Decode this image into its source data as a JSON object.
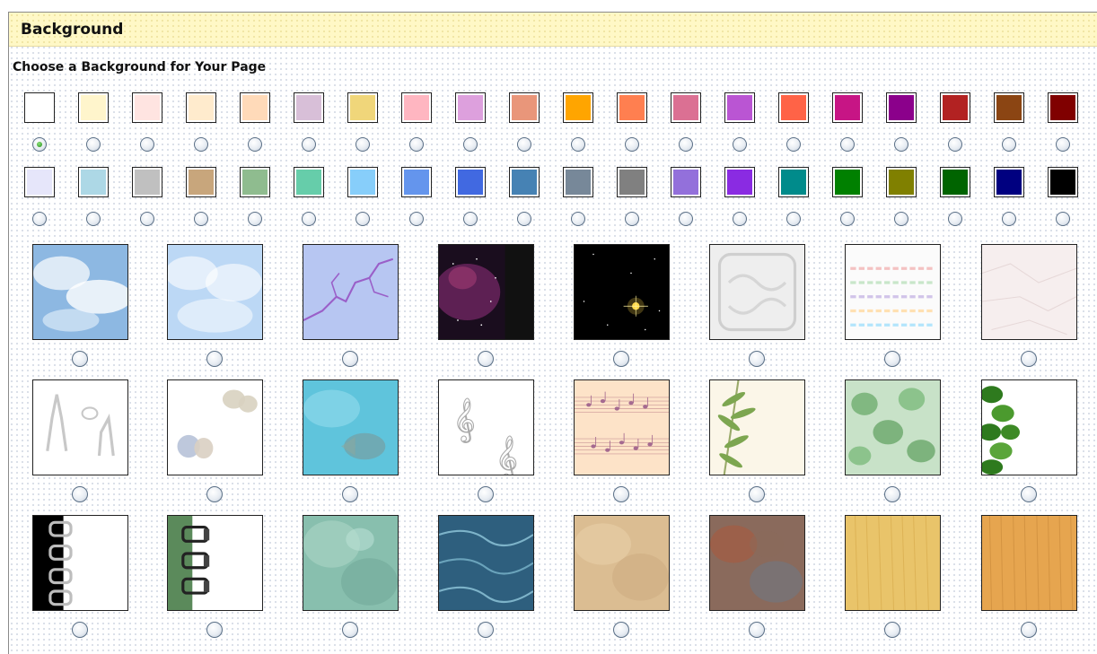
{
  "header": {
    "title": "Background"
  },
  "subtitle": "Choose a Background for Your Page",
  "color_rows": [
    [
      "#ffffff",
      "#fff5cc",
      "#ffe4e1",
      "#ffebcd",
      "#ffdab9",
      "#d8bfd8",
      "#f0d67a",
      "#ffb6c1",
      "#dda0dd",
      "#e9967a",
      "#ffa500",
      "#ff7f50",
      "#db7093",
      "#ba55d3",
      "#ff6347",
      "#c71585",
      "#8b008b",
      "#b22222",
      "#8b4513",
      "#800000"
    ],
    [
      "#e6e6fa",
      "#add8e6",
      "#c0c0c0",
      "#c8a67c",
      "#8fbc8f",
      "#66cdaa",
      "#87cefa",
      "#6495ed",
      "#4169e1",
      "#4682b4",
      "#778899",
      "#808080",
      "#9370db",
      "#8a2be2",
      "#008b8b",
      "#008000",
      "#808000",
      "#006400",
      "#000080",
      "#000000"
    ]
  ],
  "selected_color_index": 0,
  "texture_rows": [
    [
      "sky-clouds-blue",
      "sky-clouds-light",
      "purple-lightning",
      "purple-nebula",
      "starfield",
      "white-embossed",
      "white-pastel-lines",
      "white-crumpled"
    ],
    [
      "giraffe-outlines",
      "butterfly-outlines",
      "blue-fish-water",
      "treble-clef",
      "music-notes",
      "bamboo-leaves",
      "green-ivy",
      "green-leaves-border"
    ],
    [
      "spiral-binding-black",
      "spiral-binding-green",
      "teal-marble",
      "blue-marble",
      "tan-marble",
      "rust-marble",
      "light-wood",
      "orange-wood"
    ]
  ]
}
